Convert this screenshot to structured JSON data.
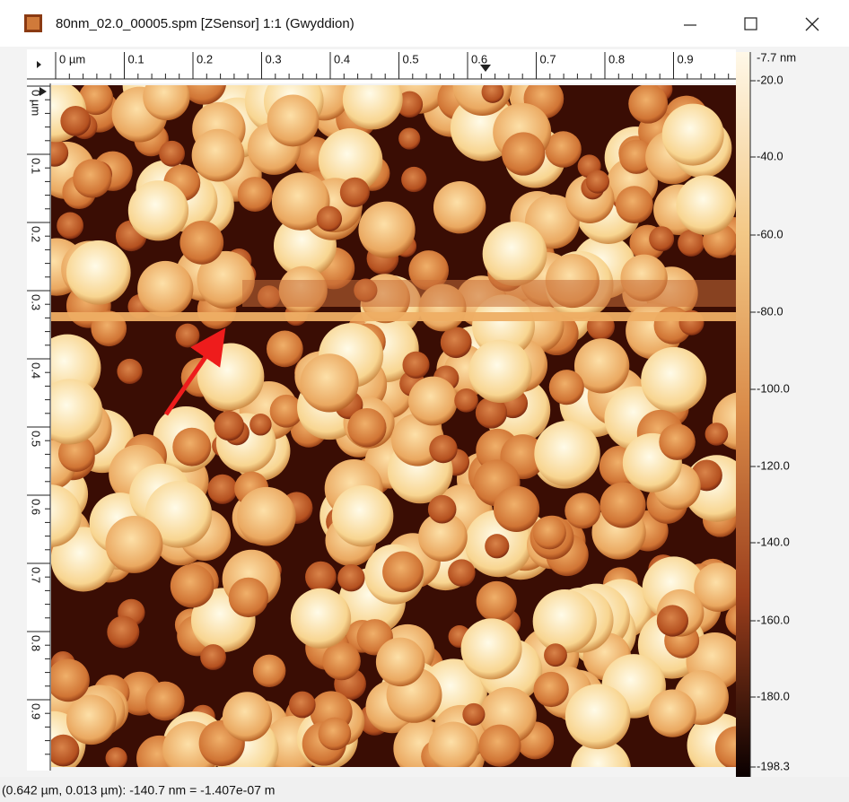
{
  "window": {
    "title": "80nm_02.0_00005.spm [ZSensor] 1:1 (Gwyddion)"
  },
  "ruler": {
    "x_labels": [
      "0 µm",
      "0.1",
      "0.2",
      "0.3",
      "0.4",
      "0.5",
      "0.6",
      "0.7",
      "0.8",
      "0.9"
    ],
    "y_labels": [
      "0 µm",
      "0.1",
      "0.2",
      "0.3",
      "0.4",
      "0.5",
      "0.6",
      "0.7",
      "0.8",
      "0.9"
    ]
  },
  "color_scale": {
    "labels": [
      "-7.7 nm",
      "-20.0",
      "-40.0",
      "-60.0",
      "-80.0",
      "-100.0",
      "-120.0",
      "-140.0",
      "-160.0",
      "-180.0",
      "-198.3"
    ]
  },
  "status_bar": {
    "text": "(0.642 µm, 0.013 µm): -140.7 nm = -1.407e-07 m"
  }
}
